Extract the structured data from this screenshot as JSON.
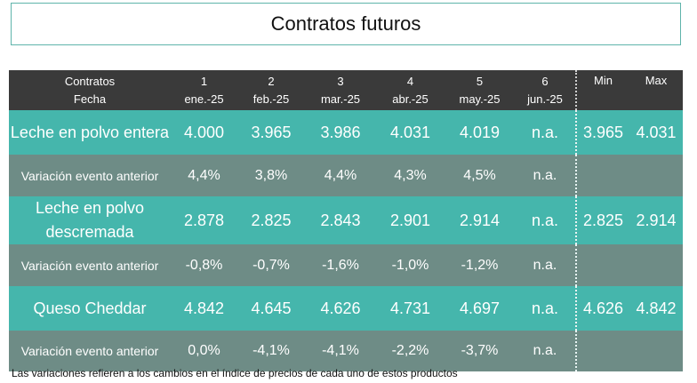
{
  "title": "Contratos futuros",
  "header": {
    "label_line1": "Contratos",
    "label_line2": "Fecha",
    "columns": [
      {
        "num": "1",
        "date": "ene.-25"
      },
      {
        "num": "2",
        "date": "feb.-25"
      },
      {
        "num": "3",
        "date": "mar.-25"
      },
      {
        "num": "4",
        "date": "abr.-25"
      },
      {
        "num": "5",
        "date": "may.-25"
      },
      {
        "num": "6",
        "date": "jun.-25"
      }
    ],
    "min": "Min",
    "max": "Max"
  },
  "rows": [
    {
      "label": "Leche en polvo entera",
      "values": [
        "4.000",
        "3.965",
        "3.986",
        "4.031",
        "4.019",
        "n.a."
      ],
      "min": "3.965",
      "max": "4.031"
    },
    {
      "label": "Variación evento anterior",
      "values": [
        "4,4%",
        "3,8%",
        "4,4%",
        "4,3%",
        "4,5%",
        "n.a."
      ],
      "min": "",
      "max": ""
    },
    {
      "label": "Leche en polvo descremada",
      "values": [
        "2.878",
        "2.825",
        "2.843",
        "2.901",
        "2.914",
        "n.a."
      ],
      "min": "2.825",
      "max": "2.914"
    },
    {
      "label": "Variación evento anterior",
      "values": [
        "-0,8%",
        "-0,7%",
        "-1,6%",
        "-1,0%",
        "-1,2%",
        "n.a."
      ],
      "min": "",
      "max": ""
    },
    {
      "label": "Queso Cheddar",
      "values": [
        "4.842",
        "4.645",
        "4.626",
        "4.731",
        "4.697",
        "n.a."
      ],
      "min": "4.626",
      "max": "4.842"
    },
    {
      "label": "Variación evento anterior",
      "values": [
        "0,0%",
        "-4,1%",
        "-4,1%",
        "-2,2%",
        "-3,7%",
        "n.a."
      ],
      "min": "",
      "max": ""
    }
  ],
  "footnote": "Las variaciones refieren a los cambios en el índice de precios de cada uno de estos productos"
}
